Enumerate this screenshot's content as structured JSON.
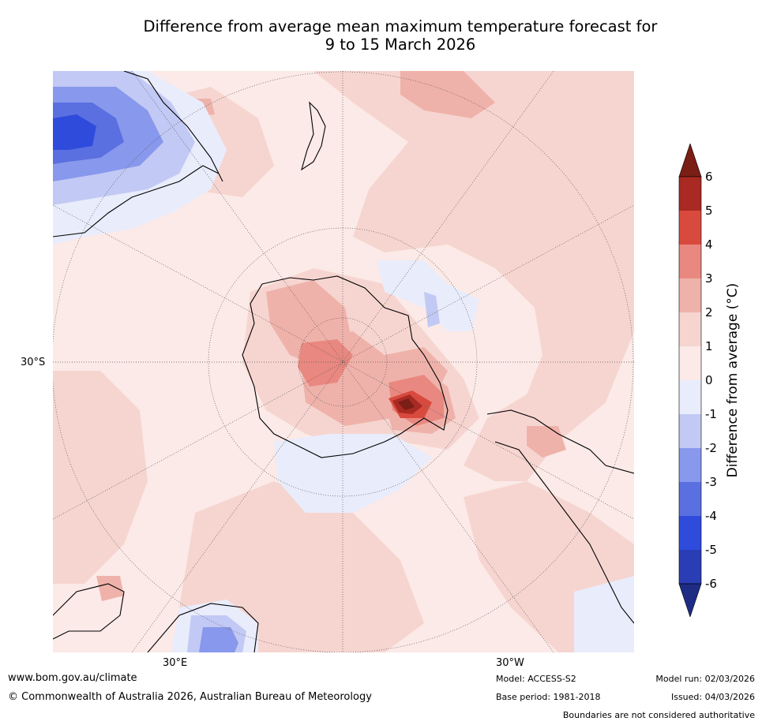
{
  "title": {
    "line1": "Difference from average mean maximum temperature forecast for",
    "line2": "9 to 15 March 2026"
  },
  "map": {
    "lat_label": "30°S",
    "lon_labels": [
      "30°E",
      "30°W"
    ]
  },
  "colorbar": {
    "label": "Difference from average (°C)",
    "ticks": [
      "6",
      "5",
      "4",
      "3",
      "2",
      "1",
      "0",
      "-1",
      "-2",
      "-3",
      "-4",
      "-5",
      "-6"
    ],
    "colors": [
      "#7a1e16",
      "#a82a22",
      "#d94a3e",
      "#e98880",
      "#efb2aa",
      "#f6d5d0",
      "#fbeae7",
      "#e9ecfb",
      "#c2c9f4",
      "#8898ec",
      "#5a6fe0",
      "#2f4bdc",
      "#2a3db4",
      "#1f2c86"
    ]
  },
  "footer": {
    "url": "www.bom.gov.au/climate",
    "copyright": "© Commonwealth of Australia 2026, Australian Bureau of Meteorology",
    "model": "Model: ACCESS-S2",
    "base_period": "Base period: 1981-2018",
    "model_run": "Model run: 02/03/2026",
    "issued": "Issued: 04/03/2026",
    "disclaimer": "Boundaries are not considered authoritative"
  }
}
